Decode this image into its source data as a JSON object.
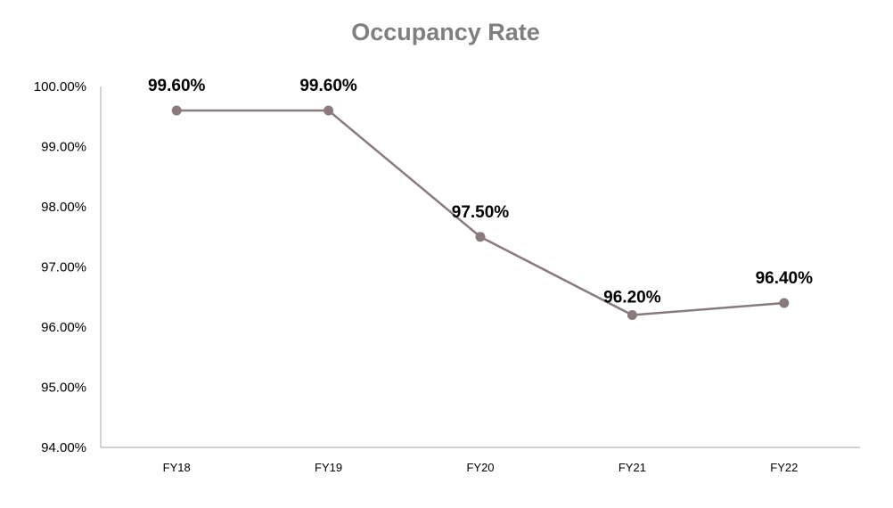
{
  "chart_data": {
    "type": "line",
    "title": "Occupancy Rate",
    "xlabel": "",
    "ylabel": "",
    "categories": [
      "FY18",
      "FY19",
      "FY20",
      "FY21",
      "FY22"
    ],
    "series": [
      {
        "values": [
          99.6,
          99.6,
          97.5,
          96.2,
          96.4
        ],
        "data_labels": [
          "99.60%",
          "99.60%",
          "97.50%",
          "96.20%",
          "96.40%"
        ],
        "color": "#8a7a7c"
      }
    ],
    "ylim": [
      94,
      100
    ],
    "yticks": [
      94,
      95,
      96,
      97,
      98,
      99,
      100
    ],
    "ytick_labels": [
      "94.00%",
      "95.00%",
      "96.00%",
      "97.00%",
      "98.00%",
      "99.00%",
      "100.00%"
    ],
    "grid": false,
    "legend": "none",
    "colors": {
      "title": "#7f7f7f",
      "axis": "#a6a6a6",
      "line": "#8a7a7c"
    }
  }
}
